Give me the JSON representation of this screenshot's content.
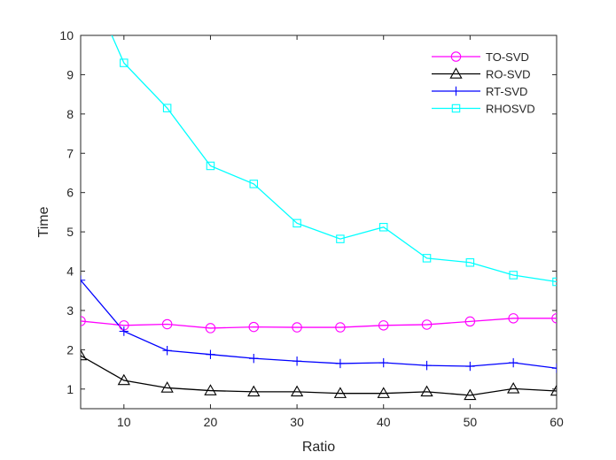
{
  "chart_data": {
    "type": "line",
    "xlabel": "Ratio",
    "ylabel": "Time",
    "xlim": [
      5,
      60
    ],
    "ylim": [
      0.5,
      10
    ],
    "xticks": [
      10,
      20,
      30,
      40,
      50,
      60
    ],
    "yticks": [
      1,
      2,
      3,
      4,
      5,
      6,
      7,
      8,
      9,
      10
    ],
    "grid": false,
    "legend_position": "top-right",
    "x": [
      5,
      10,
      15,
      20,
      25,
      30,
      35,
      40,
      45,
      50,
      55,
      60
    ],
    "series": [
      {
        "name": "TO-SVD",
        "color": "#ff00ff",
        "marker": "circle",
        "values": [
          2.73,
          2.62,
          2.65,
          2.55,
          2.58,
          2.57,
          2.57,
          2.62,
          2.64,
          2.72,
          2.8,
          2.8
        ]
      },
      {
        "name": "RO-SVD",
        "color": "#000000",
        "marker": "triangle",
        "values": [
          1.85,
          1.22,
          1.03,
          0.96,
          0.93,
          0.93,
          0.89,
          0.89,
          0.93,
          0.84,
          1.01,
          0.95
        ]
      },
      {
        "name": "RT-SVD",
        "color": "#0000ff",
        "marker": "plus",
        "values": [
          3.77,
          2.47,
          1.98,
          1.88,
          1.78,
          1.71,
          1.65,
          1.67,
          1.6,
          1.58,
          1.67,
          1.53
        ]
      },
      {
        "name": "RHOSVD",
        "color": "#00ffff",
        "marker": "square",
        "values": [
          11.8,
          9.3,
          8.15,
          6.68,
          6.22,
          5.22,
          4.82,
          5.12,
          4.33,
          4.22,
          3.9,
          3.73
        ]
      }
    ]
  }
}
